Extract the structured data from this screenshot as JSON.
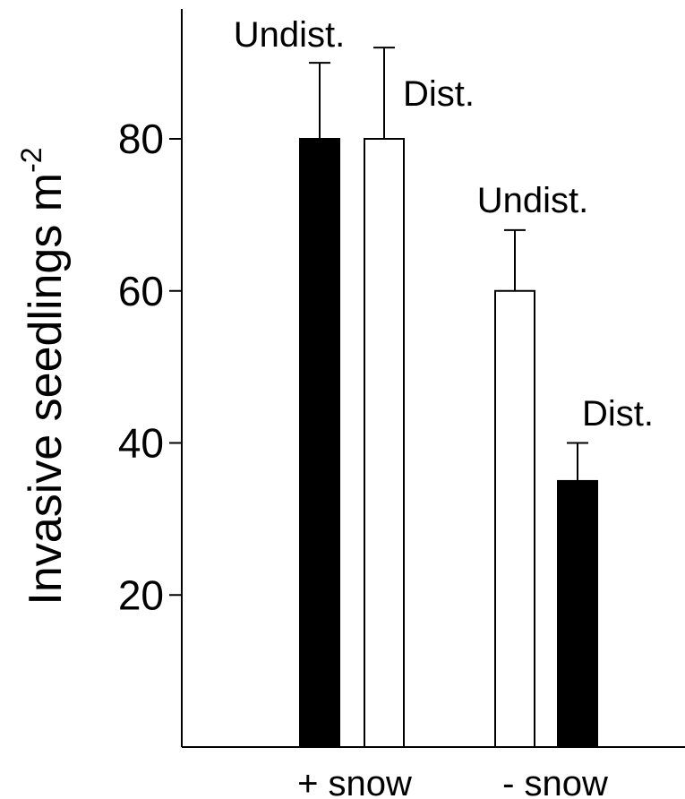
{
  "chart_data": {
    "type": "bar",
    "title": "",
    "xlabel": "",
    "ylabel": "Invasive seedlings m",
    "ylabel_superscript": "-2",
    "ylim": [
      0,
      98
    ],
    "yticks": [
      20,
      40,
      60,
      80
    ],
    "categories": [
      "+ snow",
      "- snow"
    ],
    "bars": [
      {
        "category": "+ snow",
        "label": "Undist.",
        "value": 80,
        "error": 10,
        "fill": "#000000"
      },
      {
        "category": "+ snow",
        "label": "Dist.",
        "value": 80,
        "error": 12,
        "fill": "#ffffff"
      },
      {
        "category": "- snow",
        "label": "Undist.",
        "value": 60,
        "error": 8,
        "fill": "#ffffff"
      },
      {
        "category": "- snow",
        "label": "Dist.",
        "value": 35,
        "error": 5,
        "fill": "#000000"
      }
    ],
    "grid": false,
    "legend": "none"
  }
}
